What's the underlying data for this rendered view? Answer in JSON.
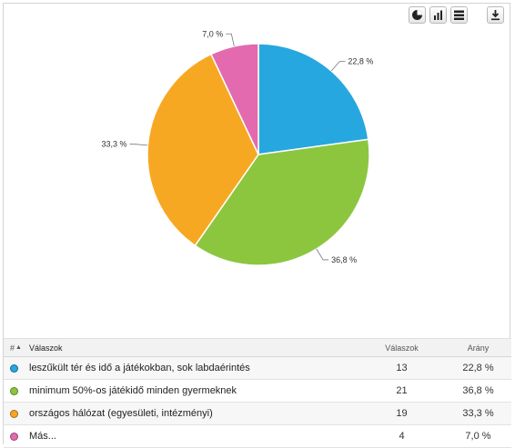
{
  "toolbar": {
    "buttons": [
      {
        "icon": "pie-chart-icon"
      },
      {
        "icon": "bar-chart-icon"
      },
      {
        "icon": "table-icon"
      },
      {
        "icon": "download-icon"
      }
    ]
  },
  "chart_data": {
    "type": "pie",
    "title": "",
    "start_angle_deg": 0,
    "direction": "clockwise",
    "slices": [
      {
        "label": "leszűkült tér és idő a játékokban, sok labdaérintés",
        "value": 22.8,
        "value_label": "22,8 %",
        "color": "#27a7df"
      },
      {
        "label": "minimum 50%-os játékidő minden gyermeknek",
        "value": 36.8,
        "value_label": "36,8 %",
        "color": "#8cc63f"
      },
      {
        "label": "országos hálózat (egyesületi, intézményi)",
        "value": 33.3,
        "value_label": "33,3 %",
        "color": "#f7a823"
      },
      {
        "label": "Más...",
        "value": 7.0,
        "value_label": "7,0 %",
        "color": "#e36aae"
      }
    ]
  },
  "table": {
    "headers": {
      "num": "#",
      "answer": "Válaszok",
      "count": "Válaszok",
      "pct": "Arány"
    },
    "rows": [
      {
        "answer": "leszűkült tér és idő a játékokban, sok labdaérintés",
        "count": "13",
        "pct": "22,8 %",
        "color": "#27a7df"
      },
      {
        "answer": "minimum 50%-os játékidő minden gyermeknek",
        "count": "21",
        "pct": "36,8 %",
        "color": "#8cc63f"
      },
      {
        "answer": "országos hálózat (egyesületi, intézményi)",
        "count": "19",
        "pct": "33,3 %",
        "color": "#f7a823"
      },
      {
        "answer": "Más...",
        "count": "4",
        "pct": "7,0 %",
        "color": "#e36aae"
      }
    ]
  }
}
